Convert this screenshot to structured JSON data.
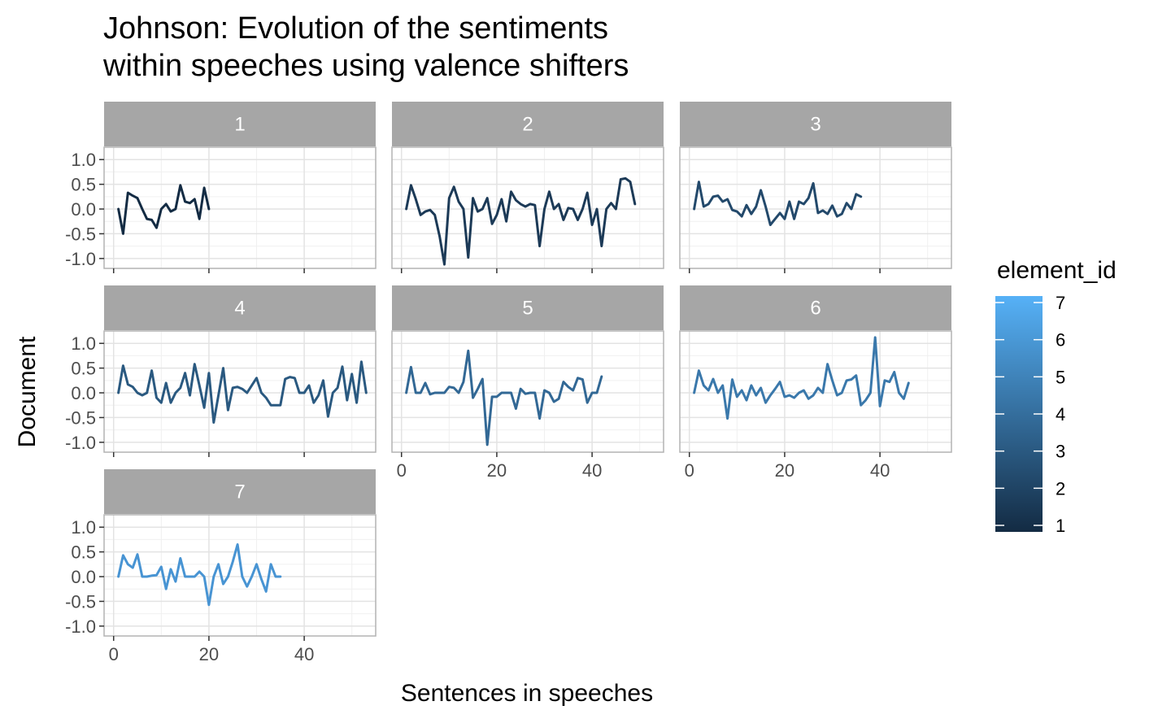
{
  "chart_data": {
    "type": "line",
    "title": "Johnson: Evolution of the sentiments\nwithin speeches using valence shifters",
    "xlabel": "Sentences in speeches",
    "ylabel": "Document",
    "xlim": [
      -2,
      55
    ],
    "ylim": [
      -1.2,
      1.25
    ],
    "x_ticks": [
      0,
      20,
      40
    ],
    "y_ticks": [
      1.0,
      0.5,
      0.0,
      -0.5,
      -1.0
    ],
    "y_tick_labels": [
      "1.0",
      "0.5",
      "0.0",
      "-0.5",
      "-1.0"
    ],
    "grid": true,
    "facet_by": "element_id",
    "legend": {
      "title": "element_id",
      "position": "right",
      "type": "colorbar",
      "range": [
        1,
        7
      ],
      "ticks": [
        "1",
        "2",
        "3",
        "4",
        "5",
        "6",
        "7"
      ],
      "color_low": "#132B43",
      "color_high": "#56B1F7"
    },
    "strip_color": "#a6a6a6",
    "panels": [
      {
        "label": "1",
        "element_id": 1,
        "color": "#132B43",
        "values": [
          0.0,
          -0.5,
          0.33,
          0.27,
          0.22,
          0.0,
          -0.2,
          -0.22,
          -0.38,
          0.0,
          0.1,
          -0.05,
          0.0,
          0.48,
          0.15,
          0.12,
          0.2,
          -0.2,
          0.43,
          0.0
        ]
      },
      {
        "label": "2",
        "element_id": 2,
        "color": "#1C3A57",
        "values": [
          0.0,
          0.48,
          0.2,
          -0.12,
          -0.05,
          -0.02,
          -0.12,
          -0.55,
          -1.12,
          0.22,
          0.45,
          0.15,
          0.0,
          -0.98,
          0.22,
          -0.05,
          0.0,
          0.22,
          -0.3,
          -0.12,
          0.2,
          -0.25,
          0.35,
          0.18,
          0.1,
          0.05,
          0.1,
          0.08,
          -0.75,
          0.0,
          0.35,
          0.0,
          0.1,
          -0.22,
          0.02,
          0.0,
          -0.22,
          0.0,
          0.33,
          -0.32,
          0.0,
          -0.75,
          0.0,
          0.12,
          0.0,
          0.6,
          0.62,
          0.55,
          0.1
        ]
      },
      {
        "label": "3",
        "element_id": 3,
        "color": "#23496B",
        "values": [
          0.0,
          0.55,
          0.05,
          0.1,
          0.25,
          0.27,
          0.15,
          0.2,
          -0.02,
          -0.05,
          -0.15,
          0.08,
          -0.1,
          0.05,
          0.38,
          0.05,
          -0.32,
          -0.2,
          -0.08,
          -0.2,
          0.15,
          -0.2,
          0.15,
          0.1,
          0.22,
          0.52,
          -0.08,
          -0.03,
          -0.1,
          0.07,
          -0.15,
          -0.1,
          0.12,
          0.0,
          0.3,
          0.25
        ]
      },
      {
        "label": "4",
        "element_id": 4,
        "color": "#2A5980",
        "values": [
          0.0,
          0.55,
          0.17,
          0.12,
          0.0,
          -0.05,
          0.0,
          0.45,
          -0.1,
          -0.2,
          0.2,
          -0.2,
          0.0,
          0.1,
          0.4,
          -0.05,
          0.58,
          0.15,
          -0.3,
          0.4,
          -0.6,
          -0.05,
          0.5,
          -0.35,
          0.1,
          0.12,
          0.08,
          0.0,
          0.15,
          0.3,
          0.0,
          -0.1,
          -0.25,
          -0.25,
          -0.25,
          0.28,
          0.32,
          0.3,
          0.0,
          0.0,
          0.15,
          -0.2,
          -0.05,
          0.25,
          -0.48,
          0.0,
          0.1,
          0.53,
          -0.15,
          0.38,
          -0.2,
          0.63,
          0.0
        ]
      },
      {
        "label": "5",
        "element_id": 5,
        "color": "#326895",
        "values": [
          0.0,
          0.52,
          0.0,
          0.0,
          0.2,
          -0.03,
          0.0,
          0.0,
          0.0,
          0.12,
          0.1,
          0.0,
          0.22,
          0.85,
          -0.1,
          0.08,
          0.28,
          -1.05,
          -0.08,
          -0.08,
          0.0,
          0.0,
          0.0,
          -0.32,
          0.08,
          -0.02,
          0.0,
          0.0,
          -0.52,
          0.05,
          0.0,
          -0.18,
          -0.12,
          0.22,
          0.12,
          0.05,
          0.3,
          0.27,
          -0.2,
          0.0,
          0.0,
          0.33
        ]
      },
      {
        "label": "6",
        "element_id": 6,
        "color": "#3A78AB",
        "values": [
          0.0,
          0.45,
          0.15,
          0.05,
          0.28,
          0.0,
          0.15,
          -0.52,
          0.27,
          -0.08,
          0.05,
          -0.15,
          0.15,
          -0.05,
          0.1,
          -0.2,
          -0.05,
          0.08,
          0.22,
          -0.08,
          -0.05,
          -0.1,
          0.0,
          0.05,
          -0.12,
          -0.05,
          0.1,
          0.0,
          0.58,
          0.25,
          -0.05,
          0.0,
          0.25,
          0.27,
          0.35,
          -0.25,
          -0.15,
          0.0,
          1.12,
          -0.27,
          0.25,
          0.22,
          0.42,
          0.0,
          -0.12,
          0.2
        ]
      },
      {
        "label": "7",
        "element_id": 7,
        "color": "#4894D3",
        "values": [
          0.0,
          0.43,
          0.25,
          0.18,
          0.45,
          0.0,
          0.0,
          0.02,
          0.03,
          0.2,
          -0.25,
          0.15,
          -0.1,
          0.37,
          0.0,
          0.0,
          0.0,
          0.1,
          0.0,
          -0.57,
          0.0,
          0.25,
          -0.15,
          0.0,
          0.3,
          0.65,
          0.0,
          -0.2,
          0.0,
          0.25,
          -0.05,
          -0.3,
          0.25,
          0.0,
          0.0
        ]
      }
    ]
  }
}
